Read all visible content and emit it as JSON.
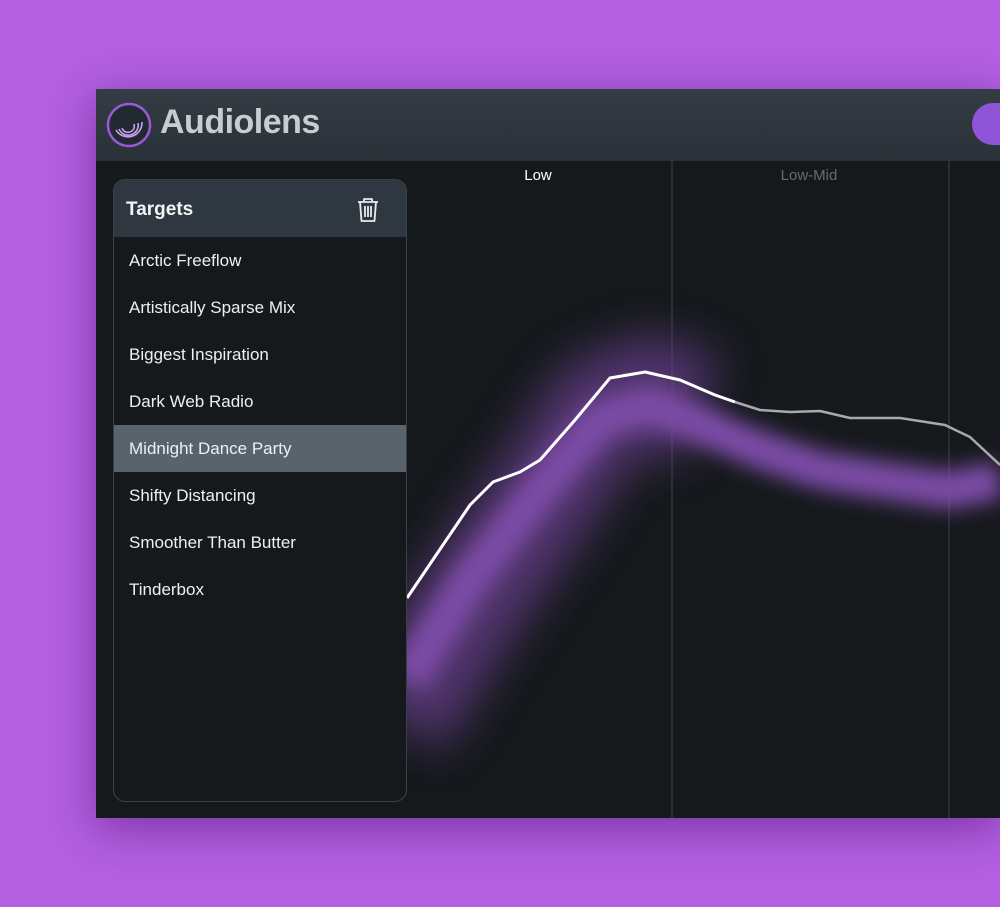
{
  "header": {
    "title": "Audiolens"
  },
  "targets_panel": {
    "title": "Targets",
    "items": [
      "Arctic Freeflow",
      "Artistically Sparse Mix",
      "Biggest Inspiration",
      "Dark Web Radio",
      "Midnight Dance Party",
      "Shifty Distancing",
      "Smoother Than Butter",
      "Tinderbox"
    ]
  },
  "graph": {
    "bands": [
      "Low",
      "Low-Mid"
    ]
  }
}
